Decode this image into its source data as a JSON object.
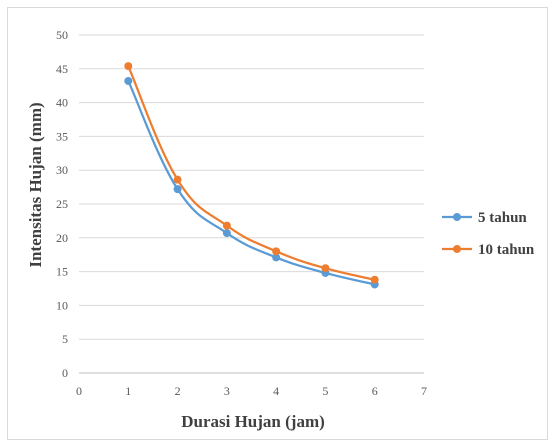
{
  "chart_data": {
    "type": "line",
    "title": "",
    "xlabel": "Durasi Hujan  (jam)",
    "ylabel": "Intensitas Hujan  (mm)",
    "xlim": [
      0,
      7
    ],
    "ylim": [
      0,
      50
    ],
    "xticks": [
      0,
      1,
      2,
      3,
      4,
      5,
      6,
      7
    ],
    "yticks": [
      0,
      5,
      10,
      15,
      20,
      25,
      30,
      35,
      40,
      45,
      50
    ],
    "grid": true,
    "legend_position": "right",
    "x": [
      1,
      2,
      3,
      4,
      5,
      6
    ],
    "series": [
      {
        "name": "5 tahun",
        "color": "#5b9bd5",
        "values": [
          43.2,
          27.2,
          20.7,
          17.1,
          14.8,
          13.1
        ]
      },
      {
        "name": "10 tahun",
        "color": "#ed7d31",
        "values": [
          45.4,
          28.6,
          21.8,
          18.0,
          15.5,
          13.8
        ]
      }
    ]
  }
}
